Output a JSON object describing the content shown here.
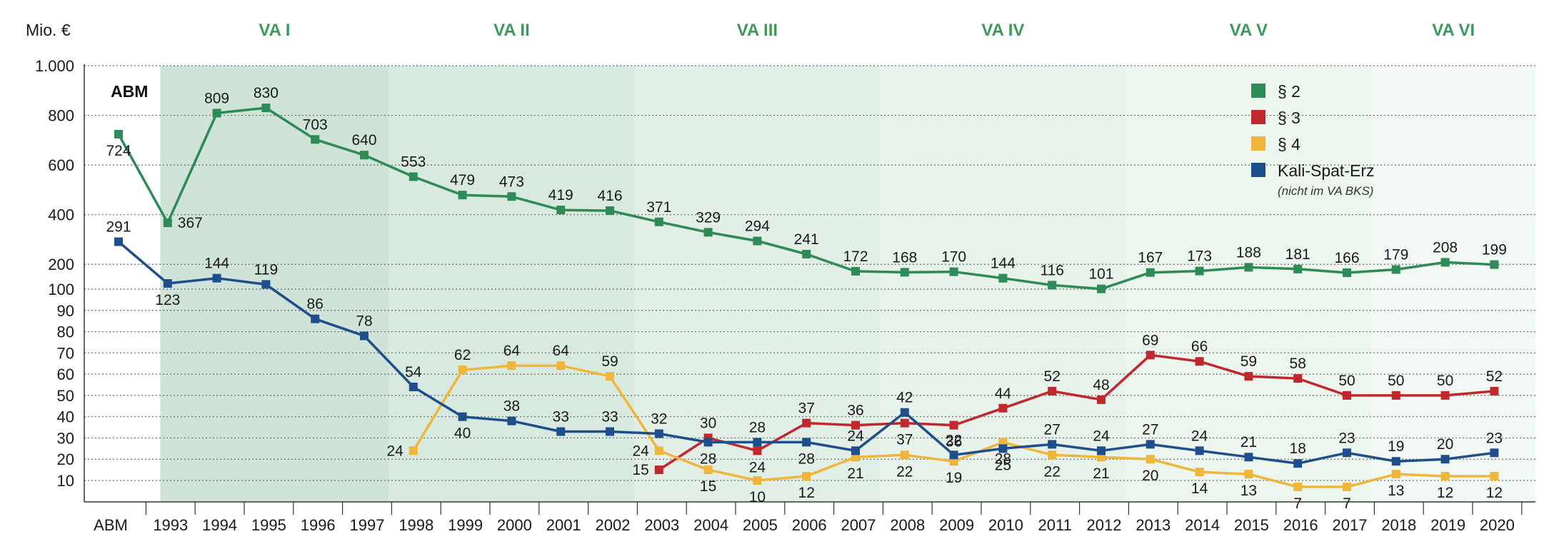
{
  "chart_data": {
    "type": "line",
    "y_unit_label": "Mio. €",
    "corner_label": "ABM",
    "categories": [
      "ABM",
      "1993",
      "1994",
      "1995",
      "1996",
      "1997",
      "1998",
      "1999",
      "2000",
      "2001",
      "2002",
      "2003",
      "2004",
      "2005",
      "2006",
      "2007",
      "2008",
      "2009",
      "2010",
      "2011",
      "2012",
      "2013",
      "2014",
      "2015",
      "2016",
      "2017",
      "2018",
      "2019",
      "2020"
    ],
    "y_ticks": [
      {
        "value": 10,
        "label": "10"
      },
      {
        "value": 20,
        "label": "20"
      },
      {
        "value": 30,
        "label": "30"
      },
      {
        "value": 40,
        "label": "40"
      },
      {
        "value": 50,
        "label": "50"
      },
      {
        "value": 60,
        "label": "60"
      },
      {
        "value": 70,
        "label": "70"
      },
      {
        "value": 80,
        "label": "80"
      },
      {
        "value": 90,
        "label": "90"
      },
      {
        "value": 100,
        "label": "100"
      },
      {
        "value": 200,
        "label": "200"
      },
      {
        "value": 400,
        "label": "400"
      },
      {
        "value": 600,
        "label": "600"
      },
      {
        "value": 800,
        "label": "800"
      },
      {
        "value": 1000,
        "label": "1.000"
      }
    ],
    "periods": [
      {
        "label": "VA I",
        "start": "1993",
        "end": "1997",
        "color": "#cfe3d8"
      },
      {
        "label": "VA II",
        "start": "1998",
        "end": "2002",
        "color": "#d8eadf"
      },
      {
        "label": "VA III",
        "start": "2003",
        "end": "2007",
        "color": "#e1efe6"
      },
      {
        "label": "VA IV",
        "start": "2008",
        "end": "2012",
        "color": "#e7f2ea"
      },
      {
        "label": "VA V",
        "start": "2013",
        "end": "2017",
        "color": "#edf5ef"
      },
      {
        "label": "VA VI",
        "start": "2018",
        "end": "2020",
        "color": "#f2f8f3"
      }
    ],
    "series": [
      {
        "name": "§ 2",
        "color": "#2e8a57",
        "values": [
          724,
          367,
          809,
          830,
          703,
          640,
          553,
          479,
          473,
          419,
          416,
          371,
          329,
          294,
          241,
          172,
          168,
          170,
          144,
          116,
          101,
          167,
          173,
          188,
          181,
          166,
          179,
          208,
          199
        ]
      },
      {
        "name": "§ 3",
        "color": "#c0282d",
        "values": [
          null,
          null,
          null,
          null,
          null,
          null,
          null,
          null,
          null,
          null,
          null,
          15,
          30,
          24,
          37,
          36,
          37,
          36,
          44,
          52,
          48,
          69,
          66,
          59,
          58,
          50,
          50,
          50,
          52
        ]
      },
      {
        "name": "§ 4",
        "color": "#f0b63c",
        "values": [
          null,
          null,
          null,
          null,
          null,
          null,
          24,
          62,
          64,
          64,
          59,
          24,
          15,
          10,
          12,
          21,
          22,
          19,
          28,
          22,
          21,
          20,
          14,
          13,
          7,
          7,
          13,
          12,
          12
        ]
      },
      {
        "name": "Kali-Spat-Erz",
        "note": "(nicht im VA BKS)",
        "color": "#1f4e8c",
        "values": [
          291,
          123,
          144,
          119,
          86,
          78,
          54,
          40,
          38,
          33,
          33,
          32,
          28,
          28,
          28,
          24,
          42,
          22,
          25,
          27,
          24,
          27,
          24,
          21,
          18,
          23,
          19,
          20,
          23
        ]
      }
    ]
  }
}
